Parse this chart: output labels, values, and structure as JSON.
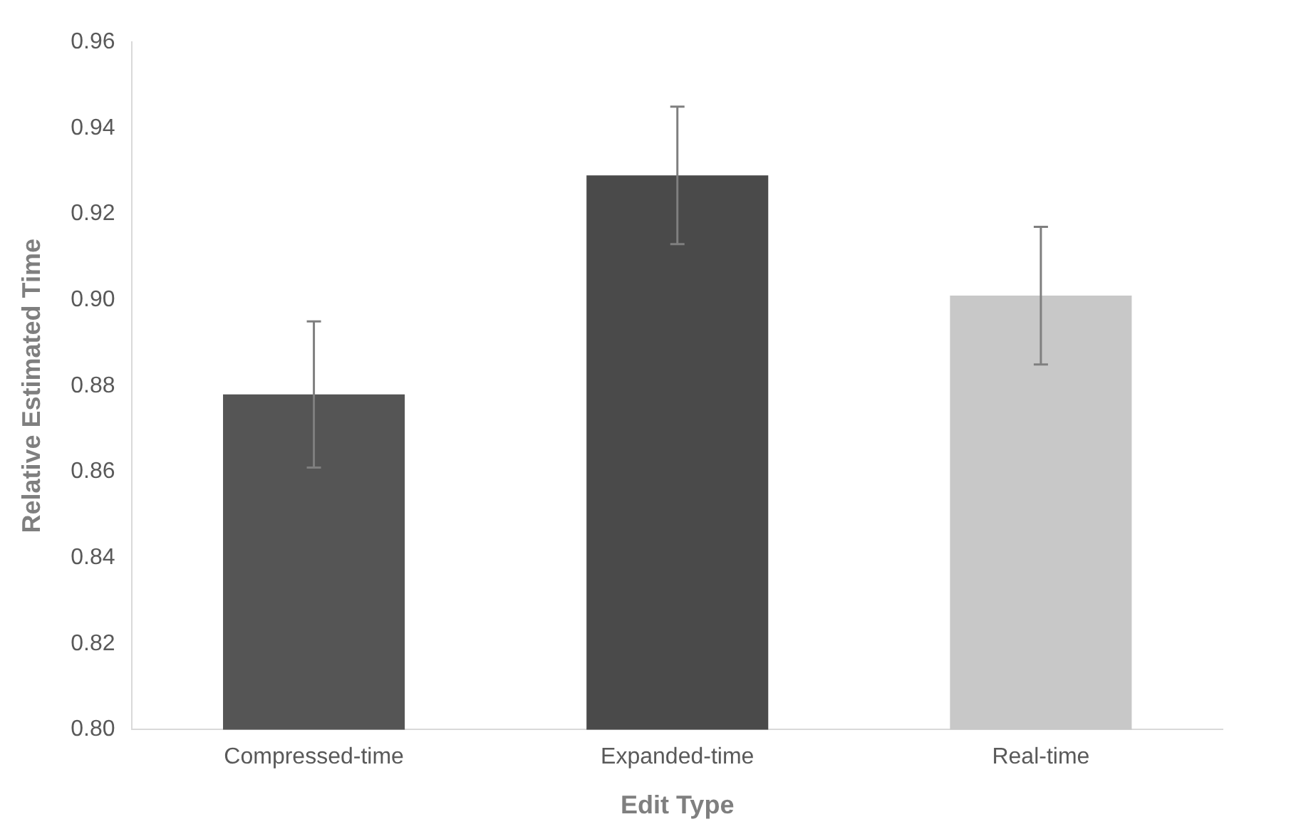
{
  "chart_data": {
    "type": "bar",
    "xlabel": "Edit Type",
    "ylabel": "Relative Estimated Time",
    "categories": [
      "Compressed-time",
      "Expanded-time",
      "Real-time"
    ],
    "values": [
      0.878,
      0.929,
      0.901
    ],
    "colors": [
      "#555555",
      "#4a4a4a",
      "#c8c8c8"
    ],
    "errors": [
      0.017,
      0.016,
      0.016
    ],
    "ylim": [
      0.8,
      0.96
    ],
    "yticks": [
      {
        "value": 0.8,
        "label": "0.80"
      },
      0.82,
      0.84,
      0.86,
      0.88,
      {
        "value": 0.9,
        "label": "0.90"
      },
      0.92,
      0.94,
      0.96
    ],
    "grid": false,
    "legend": false
  }
}
